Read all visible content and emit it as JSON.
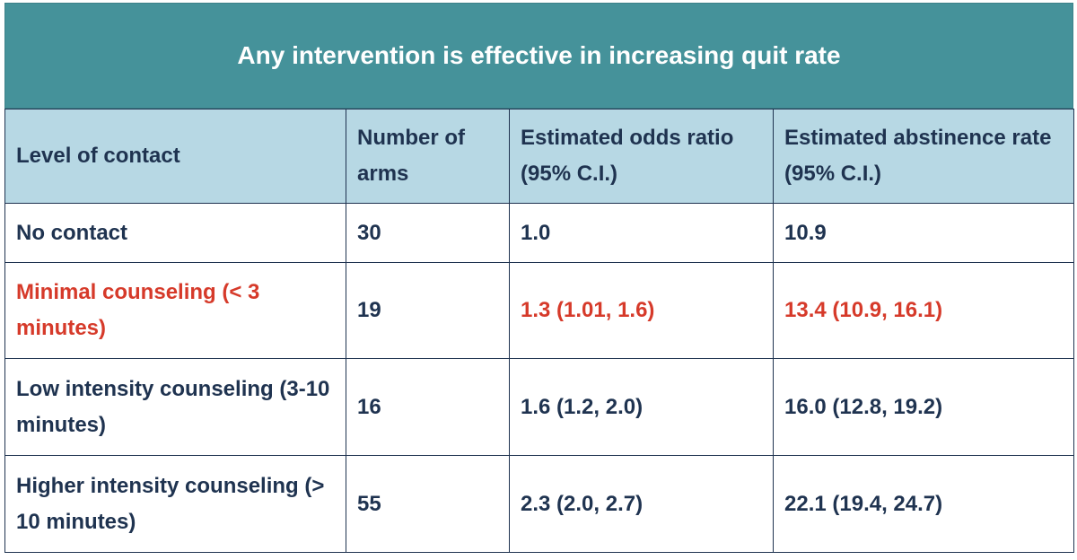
{
  "title": "Any intervention is effective in increasing quit rate",
  "colors": {
    "title_bg": "#45929a",
    "header_bg": "#b7d8e4",
    "text": "#1f3350",
    "highlight": "#d63a2a"
  },
  "table": {
    "headers": [
      "Level of contact",
      "Number of arms",
      "Estimated odds ratio (95% C.I.)",
      "Estimated abstinence rate (95% C.I.)"
    ],
    "rows": [
      {
        "level": "No contact",
        "arms": "30",
        "odds": "1.0",
        "abstinence": "10.9"
      },
      {
        "level": "Minimal counseling (< 3 minutes)",
        "arms": "19",
        "odds": "1.3 (1.01, 1.6)",
        "abstinence": "13.4 (10.9, 16.1)"
      },
      {
        "level": "Low intensity counseling (3-10 minutes)",
        "arms": "16",
        "odds": "1.6 (1.2, 2.0)",
        "abstinence": "16.0 (12.8, 19.2)"
      },
      {
        "level": "Higher intensity counseling (> 10 minutes)",
        "arms": "55",
        "odds": "2.3 (2.0, 2.7)",
        "abstinence": "22.1 (19.4, 24.7)"
      }
    ]
  }
}
